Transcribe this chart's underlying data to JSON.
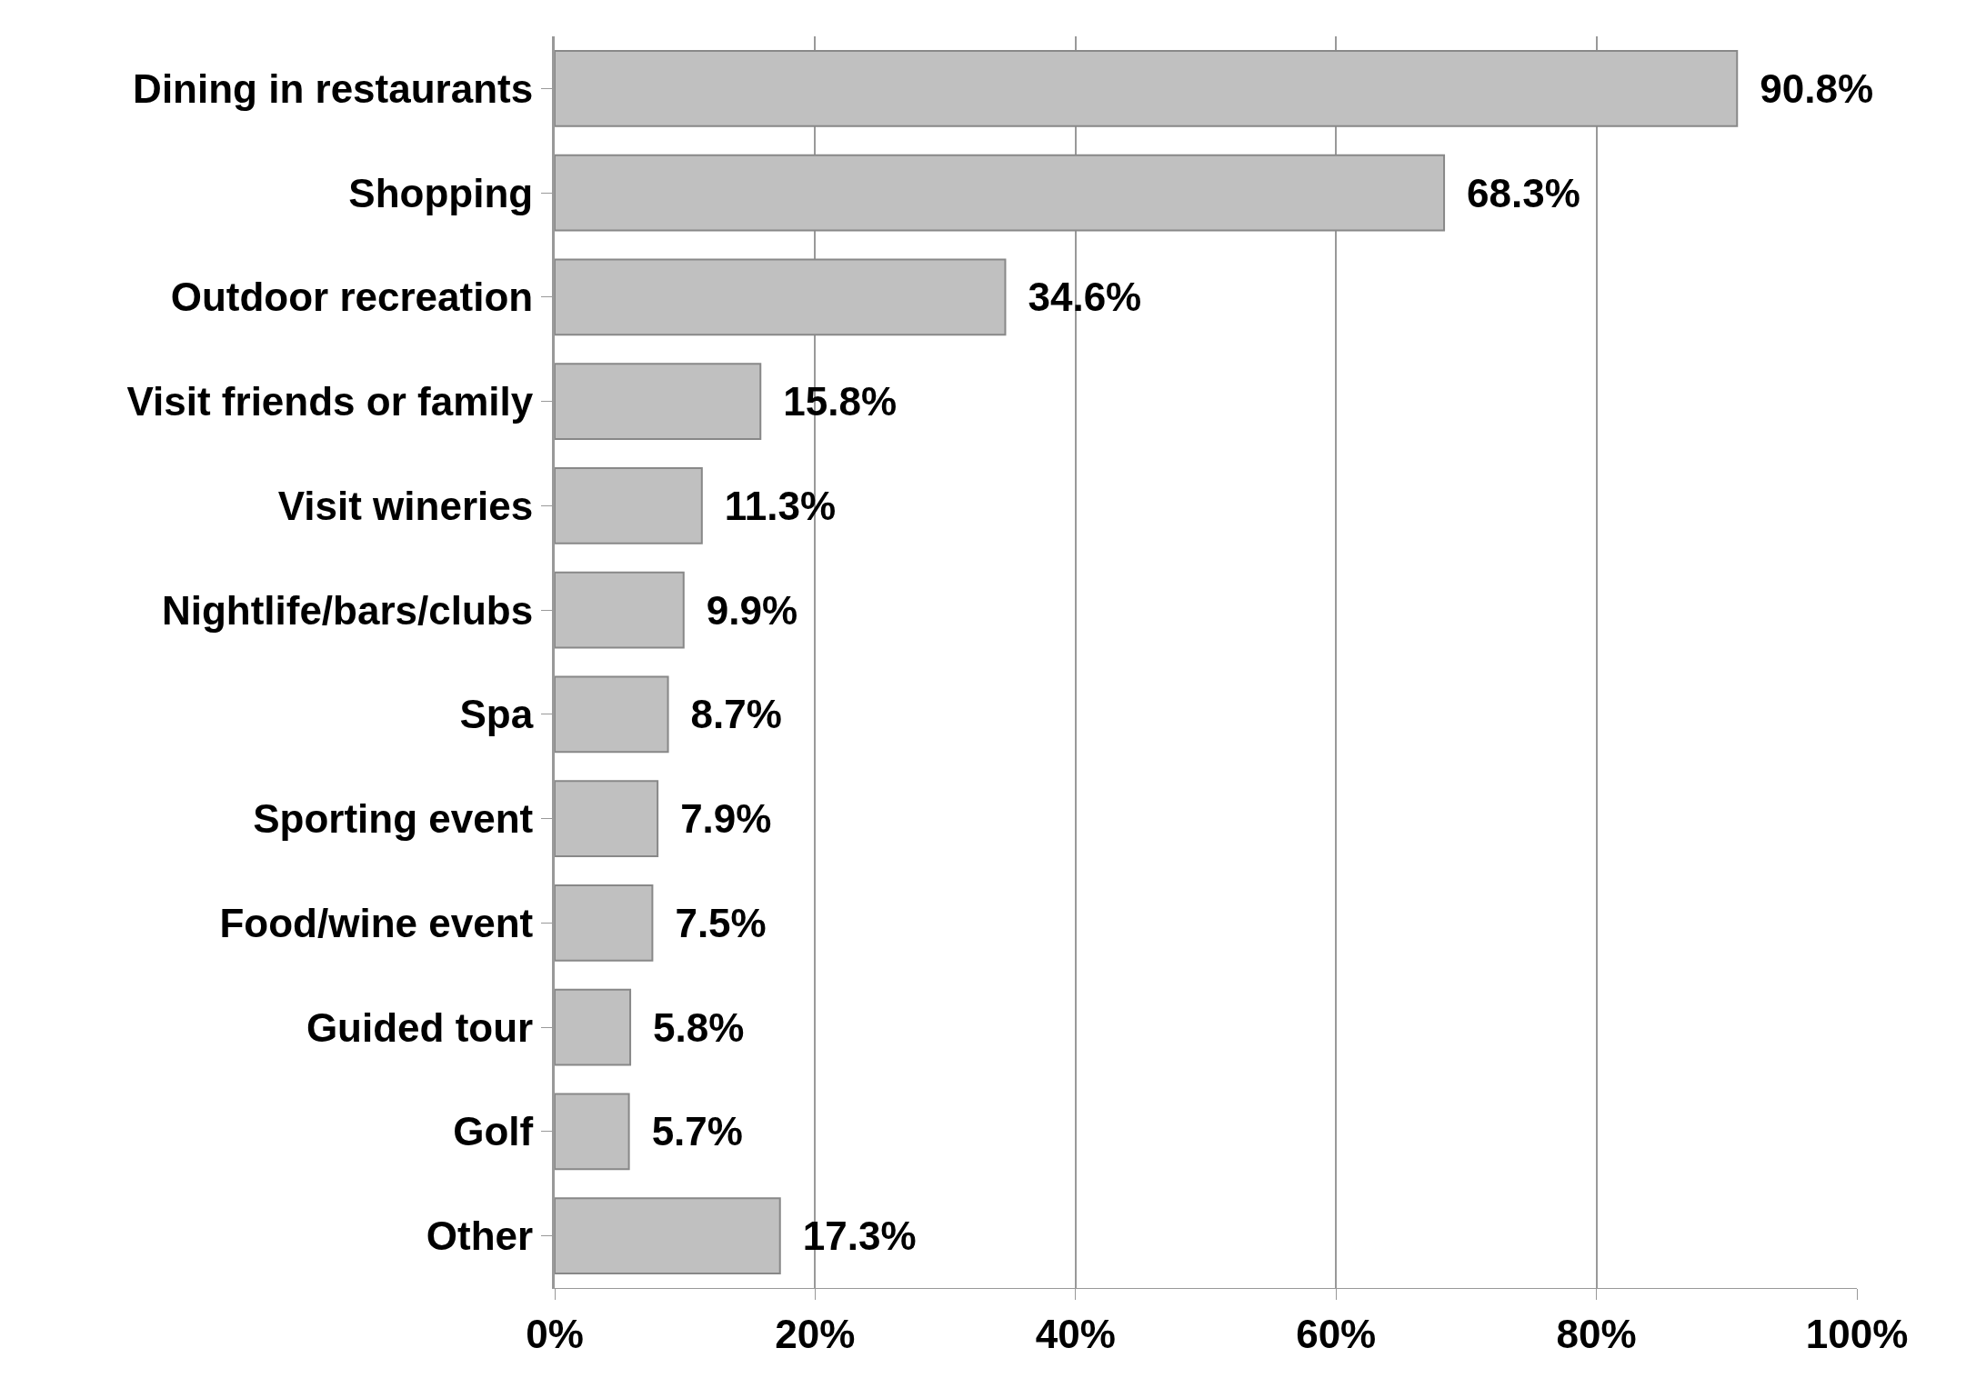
{
  "chart_data": {
    "type": "bar",
    "orientation": "horizontal",
    "categories": [
      "Dining in restaurants",
      "Shopping",
      "Outdoor recreation",
      "Visit friends or family",
      "Visit wineries",
      "Nightlife/bars/clubs",
      "Spa",
      "Sporting event",
      "Food/wine event",
      "Guided tour",
      "Golf",
      "Other"
    ],
    "values": [
      90.8,
      68.3,
      34.6,
      15.8,
      11.3,
      9.9,
      8.7,
      7.9,
      7.5,
      5.8,
      5.7,
      17.3
    ],
    "value_labels": [
      "90.8%",
      "68.3%",
      "34.6%",
      "15.8%",
      "11.3%",
      "9.9%",
      "8.7%",
      "7.9%",
      "7.5%",
      "5.8%",
      "5.7%",
      "17.3%"
    ],
    "color": "#c0c0c0",
    "xlim": [
      0,
      100
    ],
    "xticks": [
      {
        "value": 0,
        "label": "0%"
      },
      {
        "value": 20,
        "label": "20%"
      },
      {
        "value": 40,
        "label": "40%"
      },
      {
        "value": 60,
        "label": "60%"
      },
      {
        "value": 80,
        "label": "80%"
      },
      {
        "value": 100,
        "label": "100%"
      }
    ],
    "grid": "x"
  }
}
